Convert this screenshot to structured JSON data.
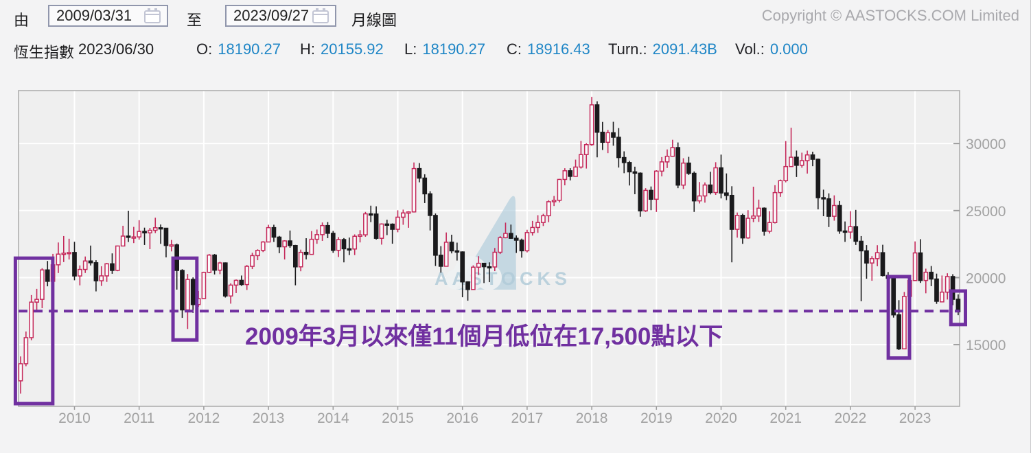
{
  "toolbar": {
    "from_label": "由",
    "from_value": "2009/03/31",
    "to_label": "至",
    "to_value": "2023/09/27",
    "chart_type": "月線圖",
    "copyright": "Copyright © AASTOCKS.COM Limited"
  },
  "quote": {
    "name": "恆生指數",
    "date": "2023/06/30",
    "fields": [
      {
        "label": "O:",
        "value": "18190.27"
      },
      {
        "label": "H:",
        "value": "20155.92"
      },
      {
        "label": "L:",
        "value": "18190.27"
      },
      {
        "label": "C:",
        "value": "18916.43"
      },
      {
        "label": "Turn.:",
        "value": "2091.43B"
      },
      {
        "label": "Vol.:",
        "value": "0.000"
      }
    ]
  },
  "watermark": {
    "text": "AASTOCKS"
  },
  "colors": {
    "up": "#c5295a",
    "down": "#1a1a1c",
    "accent_purple": "#7030a0",
    "value_blue": "#1f86c6",
    "axis_text": "#a2a2a2",
    "plot_bg": "#efefef",
    "grid": "#ffffff"
  },
  "chart_data": {
    "type": "candlestick",
    "title": "恆生指數 月線圖 2009/03/31 - 2023/09/27",
    "start_month": "2009-03",
    "y_ticks": [
      15000,
      20000,
      25000,
      30000
    ],
    "x_tick_years": [
      2010,
      2011,
      2012,
      2013,
      2014,
      2015,
      2016,
      2017,
      2018,
      2019,
      2020,
      2021,
      2022,
      2023
    ],
    "y_range_visible": [
      10500,
      33950
    ],
    "grid": true,
    "legend": false,
    "candles_ohlc": [
      [
        12300,
        14120,
        11345,
        13576
      ],
      [
        13576,
        15980,
        13390,
        15521
      ],
      [
        15521,
        18700,
        15330,
        18171
      ],
      [
        18171,
        19160,
        17490,
        18378
      ],
      [
        18378,
        20700,
        17720,
        20573
      ],
      [
        20573,
        21240,
        19350,
        19724
      ],
      [
        19724,
        21770,
        19300,
        20955
      ],
      [
        20955,
        22620,
        20340,
        21753
      ],
      [
        21753,
        23100,
        21160,
        21821
      ],
      [
        21821,
        22900,
        21350,
        21873
      ],
      [
        21873,
        22672,
        19800,
        20122
      ],
      [
        20122,
        20911,
        19423,
        20609
      ],
      [
        20609,
        21575,
        20344,
        21239
      ],
      [
        21239,
        22390,
        20906,
        21109
      ],
      [
        21109,
        21297,
        18972,
        19765
      ],
      [
        19765,
        20846,
        19378,
        20129
      ],
      [
        20129,
        21093,
        19680,
        21030
      ],
      [
        21030,
        21807,
        20286,
        20537
      ],
      [
        20537,
        22387,
        20476,
        22358
      ],
      [
        22358,
        23867,
        22332,
        23096
      ],
      [
        23096,
        24989,
        22655,
        23007
      ],
      [
        23007,
        23786,
        22574,
        23035
      ],
      [
        23035,
        24283,
        22830,
        23447
      ],
      [
        23447,
        23726,
        22434,
        23338
      ],
      [
        23338,
        23711,
        22123,
        23527
      ],
      [
        23527,
        24469,
        23322,
        23720
      ],
      [
        23720,
        23961,
        22519,
        23684
      ],
      [
        23684,
        23707,
        21508,
        22398
      ],
      [
        22398,
        22808,
        21954,
        22440
      ],
      [
        22440,
        22541,
        19105,
        20535
      ],
      [
        20535,
        20626,
        16999,
        17592
      ],
      [
        17592,
        20272,
        16170,
        19865
      ],
      [
        19865,
        20014,
        17369,
        17989
      ],
      [
        17989,
        19000,
        17821,
        18434
      ],
      [
        18434,
        20441,
        18398,
        20390
      ],
      [
        20390,
        21760,
        20333,
        21680
      ],
      [
        21680,
        21760,
        20235,
        20555
      ],
      [
        20555,
        21180,
        20258,
        21094
      ],
      [
        21094,
        21134,
        18514,
        18629
      ],
      [
        18629,
        19576,
        18056,
        19441
      ],
      [
        19441,
        19862,
        18850,
        19796
      ],
      [
        19796,
        20155,
        19380,
        19482
      ],
      [
        19482,
        20940,
        19076,
        20840
      ],
      [
        20840,
        21852,
        20635,
        21641
      ],
      [
        21641,
        22111,
        21299,
        22030
      ],
      [
        22030,
        22719,
        21904,
        22657
      ],
      [
        22657,
        23940,
        22657,
        23729
      ],
      [
        23729,
        23944,
        22661,
        23020
      ],
      [
        23020,
        23109,
        21821,
        22300
      ],
      [
        22300,
        22790,
        21353,
        22737
      ],
      [
        22737,
        23512,
        22227,
        22392
      ],
      [
        22392,
        22441,
        19426,
        20803
      ],
      [
        20803,
        22088,
        20473,
        21884
      ],
      [
        21884,
        22938,
        21360,
        21731
      ],
      [
        21731,
        23469,
        21712,
        22860
      ],
      [
        22860,
        23585,
        22523,
        23206
      ],
      [
        23206,
        24112,
        22738,
        23881
      ],
      [
        23881,
        24146,
        22940,
        23306
      ],
      [
        23306,
        23482,
        21846,
        22035
      ],
      [
        22035,
        23020,
        21539,
        22837
      ],
      [
        22837,
        22951,
        21137,
        22151
      ],
      [
        22151,
        22988,
        21681,
        22134
      ],
      [
        22134,
        23224,
        21682,
        23082
      ],
      [
        23082,
        23541,
        22624,
        23191
      ],
      [
        23191,
        24900,
        23047,
        24757
      ],
      [
        24757,
        25363,
        24141,
        24742
      ],
      [
        24742,
        25318,
        22838,
        22933
      ],
      [
        22933,
        24047,
        22460,
        23998
      ],
      [
        23998,
        24317,
        23170,
        23987
      ],
      [
        23987,
        24044,
        22529,
        23605
      ],
      [
        23605,
        25021,
        23383,
        24507
      ],
      [
        24507,
        25071,
        23941,
        24823
      ],
      [
        24823,
        24953,
        23717,
        24901
      ],
      [
        24901,
        28589,
        24855,
        28133
      ],
      [
        28133,
        28543,
        27110,
        27424
      ],
      [
        27424,
        27709,
        25557,
        26250
      ],
      [
        26250,
        26446,
        23517,
        24636
      ],
      [
        24636,
        24784,
        20865,
        21671
      ],
      [
        21671,
        22347,
        20368,
        20846
      ],
      [
        20846,
        23369,
        20845,
        22640
      ],
      [
        22640,
        23200,
        21807,
        21996
      ],
      [
        21996,
        22608,
        21274,
        21914
      ],
      [
        21914,
        21958,
        18534,
        19683
      ],
      [
        19683,
        19725,
        18278,
        19112
      ],
      [
        19112,
        20913,
        19112,
        20777
      ],
      [
        20777,
        21598,
        20205,
        21067
      ],
      [
        21067,
        21085,
        19594,
        20815
      ],
      [
        20815,
        21137,
        19662,
        20794
      ],
      [
        20794,
        22211,
        20482,
        21891
      ],
      [
        21891,
        23095,
        21760,
        22977
      ],
      [
        22977,
        24100,
        22931,
        23297
      ],
      [
        23297,
        23955,
        22894,
        22935
      ],
      [
        22935,
        23147,
        21839,
        22790
      ],
      [
        22790,
        22908,
        21488,
        22001
      ],
      [
        22001,
        23569,
        21883,
        23361
      ],
      [
        23361,
        24230,
        23133,
        23741
      ],
      [
        23741,
        24656,
        23340,
        24112
      ],
      [
        24112,
        24757,
        23847,
        24615
      ],
      [
        24615,
        25771,
        24135,
        25661
      ],
      [
        25661,
        26090,
        25340,
        25765
      ],
      [
        25765,
        27360,
        25612,
        27324
      ],
      [
        27324,
        28157,
        26883,
        27970
      ],
      [
        27970,
        28160,
        27254,
        27554
      ],
      [
        27554,
        28801,
        27536,
        28246
      ],
      [
        28246,
        30199,
        28134,
        29177
      ],
      [
        29177,
        30028,
        28135,
        29919
      ],
      [
        29919,
        33484,
        29830,
        32887
      ],
      [
        32887,
        33154,
        28971,
        30845
      ],
      [
        30845,
        31612,
        29518,
        30093
      ],
      [
        30093,
        31017,
        29282,
        30808
      ],
      [
        30808,
        31622,
        29839,
        30469
      ],
      [
        30469,
        31154,
        28210,
        28955
      ],
      [
        28955,
        29419,
        27789,
        28583
      ],
      [
        28583,
        28709,
        26871,
        27889
      ],
      [
        27889,
        28275,
        26220,
        27789
      ],
      [
        27789,
        27848,
        24541,
        24980
      ],
      [
        24980,
        26672,
        24896,
        26507
      ],
      [
        26507,
        26798,
        25027,
        25846
      ],
      [
        25846,
        28011,
        24897,
        27942
      ],
      [
        27942,
        28990,
        27551,
        28633
      ],
      [
        28633,
        29562,
        28174,
        29051
      ],
      [
        29051,
        30280,
        29014,
        29699
      ],
      [
        29699,
        30081,
        26672,
        26901
      ],
      [
        26901,
        28904,
        26612,
        28543
      ],
      [
        28543,
        29008,
        27658,
        27778
      ],
      [
        27778,
        27916,
        24900,
        25725
      ],
      [
        25725,
        27130,
        25529,
        26092
      ],
      [
        26092,
        27101,
        25593,
        26907
      ],
      [
        26907,
        27895,
        26204,
        26346
      ],
      [
        26346,
        28608,
        26167,
        28189
      ],
      [
        28189,
        29175,
        25907,
        26313
      ],
      [
        26313,
        27772,
        25782,
        26130
      ],
      [
        26130,
        26817,
        21139,
        23603
      ],
      [
        23603,
        24855,
        22982,
        24644
      ],
      [
        24644,
        24765,
        22520,
        22961
      ],
      [
        22961,
        25030,
        22898,
        24427
      ],
      [
        24427,
        26782,
        24137,
        24595
      ],
      [
        24595,
        25819,
        24156,
        25177
      ],
      [
        25177,
        25239,
        23124,
        23459
      ],
      [
        23459,
        24953,
        23288,
        24107
      ],
      [
        24107,
        26894,
        24037,
        26341
      ],
      [
        26341,
        27314,
        26024,
        27231
      ],
      [
        27231,
        30191,
        27107,
        28284
      ],
      [
        28284,
        31183,
        28266,
        28980
      ],
      [
        28980,
        29476,
        27505,
        28378
      ],
      [
        28378,
        29319,
        28195,
        28725
      ],
      [
        28725,
        29469,
        27763,
        29152
      ],
      [
        29152,
        29394,
        28310,
        28828
      ],
      [
        28828,
        28883,
        25089,
        25961
      ],
      [
        25961,
        26560,
        24581,
        25879
      ],
      [
        25879,
        26285,
        23771,
        24576
      ],
      [
        24576,
        26136,
        24246,
        25377
      ],
      [
        25377,
        25713,
        23267,
        23475
      ],
      [
        23475,
        24188,
        22665,
        23398
      ],
      [
        23398,
        24952,
        22907,
        23802
      ],
      [
        23802,
        25051,
        22437,
        22713
      ],
      [
        22713,
        23099,
        18235,
        21997
      ],
      [
        21997,
        22425,
        19918,
        21089
      ],
      [
        21089,
        21599,
        19764,
        21415
      ],
      [
        21415,
        22418,
        20845,
        21860
      ],
      [
        21860,
        22450,
        20083,
        20157
      ],
      [
        20157,
        20416,
        19348,
        19954
      ],
      [
        19954,
        19966,
        17017,
        17223
      ],
      [
        17223,
        18318,
        14597,
        14687
      ],
      [
        14687,
        18930,
        14685,
        18597
      ],
      [
        18597,
        20010,
        18266,
        19781
      ],
      [
        19781,
        22700,
        19781,
        21842
      ],
      [
        21842,
        22867,
        19604,
        19786
      ],
      [
        19786,
        20666,
        18829,
        20400
      ],
      [
        20400,
        20865,
        19362,
        19895
      ],
      [
        19895,
        20297,
        18044,
        18234
      ],
      [
        18190,
        20156,
        18190,
        18916
      ],
      [
        18916,
        20322,
        18366,
        20078
      ],
      [
        20078,
        20255,
        17943,
        18382
      ],
      [
        18382,
        18750,
        17200,
        17450
      ]
    ],
    "annotations": {
      "hline": {
        "value": 17500,
        "style": "dashed",
        "color": "#7030a0"
      },
      "label": {
        "text": "2009年3月以來僅11個月低位在17,500點以下",
        "color": "#7030a0"
      },
      "boxes": [
        {
          "from": "2009-03",
          "to": "2009-08",
          "top": 21450,
          "bottom": 10600,
          "pad": 5
        },
        {
          "from": "2011-08",
          "to": "2011-11",
          "top": 21450,
          "bottom": 15350,
          "pad": 3
        },
        {
          "from": "2022-09",
          "to": "2022-11",
          "top": 20075,
          "bottom": 14000,
          "pad": 5
        },
        {
          "from": "2023-09",
          "to": "2023-09",
          "top": 19000,
          "bottom": 16500,
          "pad": 8
        }
      ]
    }
  }
}
